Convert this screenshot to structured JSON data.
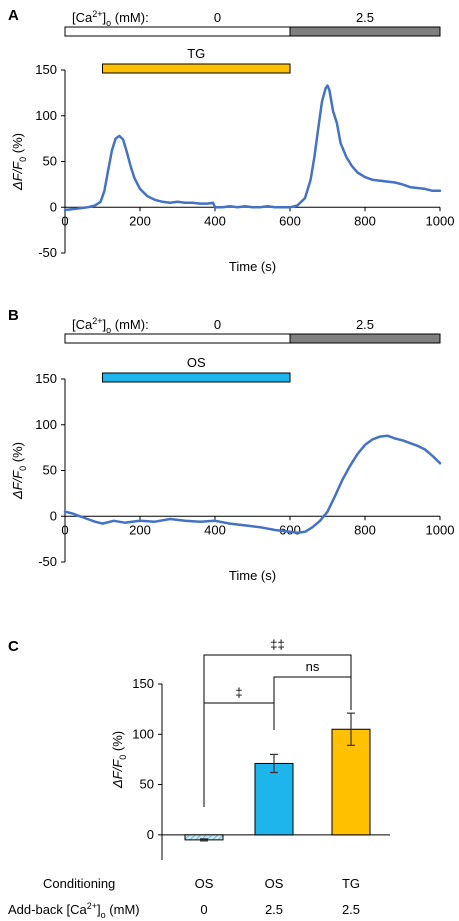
{
  "chart_data": [
    {
      "panel": "A",
      "type": "line",
      "condition_bar": {
        "label_parts": [
          "[Ca",
          "2+",
          "]",
          "o",
          " (mM):"
        ],
        "segments": [
          {
            "label": "0",
            "x_range": [
              0,
              600
            ],
            "color": "#ffffff"
          },
          {
            "label": "2.5",
            "x_range": [
              600,
              1000
            ],
            "color": "#808080"
          }
        ]
      },
      "treatment": {
        "label": "TG",
        "x_range": [
          100,
          600
        ],
        "color": "#FFC000"
      },
      "xlabel": "Time (s)",
      "ylabel_parts": [
        "ΔF/F",
        "0",
        " (%)"
      ],
      "xlim": [
        0,
        1000
      ],
      "ylim": [
        -50,
        150
      ],
      "x_ticks": [
        "0",
        "200",
        "400",
        "600",
        "800",
        "1000"
      ],
      "y_ticks": [
        "-50",
        "0",
        "50",
        "100",
        "150"
      ],
      "line_color": "#4472C4",
      "x": [
        0,
        20,
        40,
        60,
        80,
        95,
        105,
        115,
        125,
        135,
        145,
        155,
        165,
        175,
        185,
        200,
        220,
        240,
        260,
        280,
        300,
        320,
        340,
        360,
        380,
        395,
        400,
        420,
        440,
        460,
        480,
        500,
        520,
        540,
        560,
        580,
        600,
        620,
        640,
        655,
        665,
        675,
        685,
        695,
        700,
        705,
        715,
        725,
        735,
        750,
        765,
        780,
        800,
        820,
        840,
        860,
        880,
        900,
        920,
        940,
        960,
        980,
        1000
      ],
      "y": [
        -3,
        -2,
        -1,
        0,
        2,
        6,
        18,
        40,
        62,
        75,
        78,
        74,
        60,
        45,
        32,
        20,
        12,
        8,
        6,
        5,
        6,
        5,
        5,
        4,
        4,
        5,
        0,
        0,
        1,
        0,
        1,
        0,
        0,
        1,
        0,
        0,
        0,
        2,
        10,
        30,
        55,
        85,
        115,
        130,
        133,
        128,
        105,
        92,
        70,
        55,
        45,
        38,
        33,
        30,
        29,
        28,
        27,
        25,
        22,
        21,
        20,
        18,
        18
      ]
    },
    {
      "panel": "B",
      "type": "line",
      "condition_bar": {
        "label_parts": [
          "[Ca",
          "2+",
          "]",
          "o",
          " (mM):"
        ],
        "segments": [
          {
            "label": "0",
            "x_range": [
              0,
              600
            ],
            "color": "#ffffff"
          },
          {
            "label": "2.5",
            "x_range": [
              600,
              1000
            ],
            "color": "#808080"
          }
        ]
      },
      "treatment": {
        "label": "OS",
        "x_range": [
          100,
          600
        ],
        "color": "#1EB4EC"
      },
      "xlabel": "Time (s)",
      "ylabel_parts": [
        "ΔF/F",
        "0",
        " (%)"
      ],
      "xlim": [
        0,
        1000
      ],
      "ylim": [
        -50,
        150
      ],
      "x_ticks": [
        "0",
        "200",
        "400",
        "600",
        "800",
        "1000"
      ],
      "y_ticks": [
        "-50",
        "0",
        "50",
        "100",
        "150"
      ],
      "line_color": "#4472C4",
      "x": [
        0,
        20,
        40,
        60,
        80,
        100,
        130,
        160,
        200,
        240,
        280,
        320,
        360,
        400,
        440,
        480,
        520,
        560,
        600,
        620,
        640,
        660,
        680,
        700,
        720,
        740,
        760,
        780,
        800,
        820,
        840,
        860,
        880,
        900,
        920,
        940,
        960,
        980,
        1000
      ],
      "y": [
        5,
        3,
        0,
        -3,
        -6,
        -8,
        -5,
        -7,
        -5,
        -6,
        -3,
        -5,
        -6,
        -5,
        -8,
        -10,
        -12,
        -15,
        -17,
        -18,
        -17,
        -12,
        -5,
        5,
        22,
        40,
        55,
        68,
        78,
        84,
        87,
        88,
        85,
        83,
        80,
        77,
        73,
        66,
        58
      ]
    },
    {
      "panel": "C",
      "type": "bar",
      "categories": [
        "OS/0",
        "OS/2.5",
        "TG/2.5"
      ],
      "conditioning_label": "Conditioning",
      "conditioning": [
        "OS",
        "OS",
        "TG"
      ],
      "addback_label_parts": [
        "Add-back [Ca",
        "2+",
        "]",
        "o",
        " (mM)"
      ],
      "addback": [
        "0",
        "2.5",
        "2.5"
      ],
      "values": [
        -5,
        71,
        105
      ],
      "errors": [
        1,
        9,
        16
      ],
      "colors": [
        "#C5E9F5",
        "#1EB4EC",
        "#FFC000"
      ],
      "hatch": [
        true,
        false,
        false
      ],
      "ylabel_parts": [
        "ΔF/F",
        "0",
        " (%)"
      ],
      "ylim": [
        -25,
        150
      ],
      "y_ticks": [
        "0",
        "50",
        "100",
        "150"
      ],
      "significance": [
        {
          "from": 0,
          "to": 1,
          "label": "‡"
        },
        {
          "from": 1,
          "to": 2,
          "label": "ns"
        },
        {
          "from": 0,
          "to": 2,
          "label": "‡‡"
        }
      ]
    }
  ]
}
